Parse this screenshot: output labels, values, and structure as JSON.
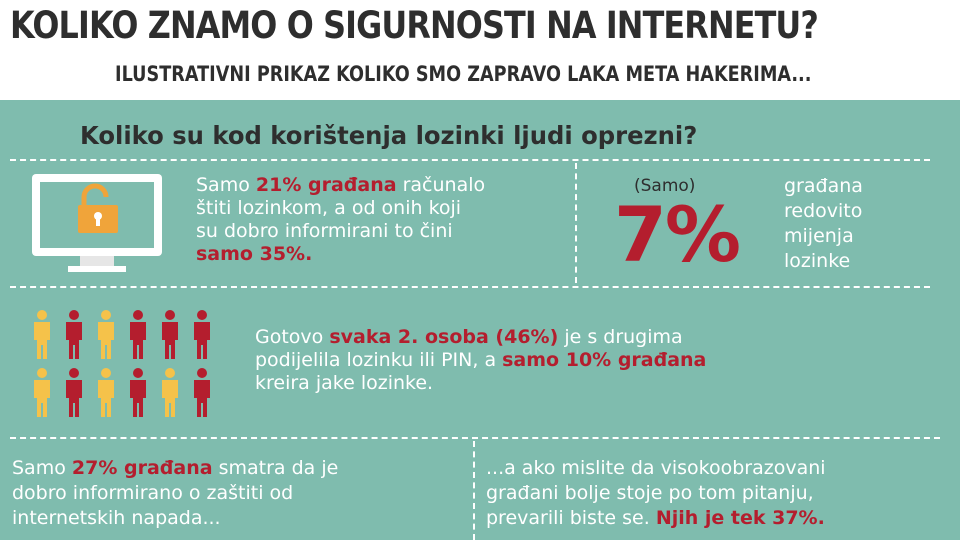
{
  "header": {
    "title": "KOLIKO ZNAMO O SIGURNOSTI NA INTERNETU?",
    "subtitle": "ILUSTRATIVNI PRIKAZ KOLIKO SMO ZAPRAVO LAKA META HAKERIMA..."
  },
  "section": {
    "title": "Koliko su kod korištenja lozinki ljudi oprezni?"
  },
  "block1": {
    "line1_a": "Samo ",
    "line1_b": "21% građana",
    "line1_c": " računalo",
    "line2": "štiti lozinkom, a od onih koji",
    "line3": "su dobro informirani to čini",
    "line4": "samo 35%."
  },
  "block2": {
    "paren": "(Samo)",
    "big": "7%",
    "lines": [
      "građana",
      "redovito",
      "mijenja",
      "lozinke"
    ]
  },
  "block3": {
    "line1_a": "Gotovo ",
    "line1_b": "svaka 2. osoba (46%)",
    "line1_c": " je s drugima",
    "line2_a": "podijelila lozinku ili PIN, a ",
    "line2_b": "samo 10% građana",
    "line3": "kreira jake lozinke."
  },
  "block4": {
    "line1_a": "Samo ",
    "line1_b": "27% građana",
    "line1_c": " smatra da je",
    "line2": "dobro informirano o zaštiti od",
    "line3": "internetskih napada..."
  },
  "block5": {
    "line1": "...a ako mislite da visokoobrazovani",
    "line2": "građani bolje stoje po tom pitanju,",
    "line3_a": "prevarili biste se. ",
    "line3_b": "Njih je tek 37%."
  },
  "colors": {
    "teal": "#7fbcae",
    "red": "#b41e2e",
    "orange": "#f0a43a",
    "yellow": "#f5c24a",
    "dark": "#2e2e2e"
  },
  "icons": {
    "computer": "monitor-lock-icon",
    "people": "person-icon"
  }
}
